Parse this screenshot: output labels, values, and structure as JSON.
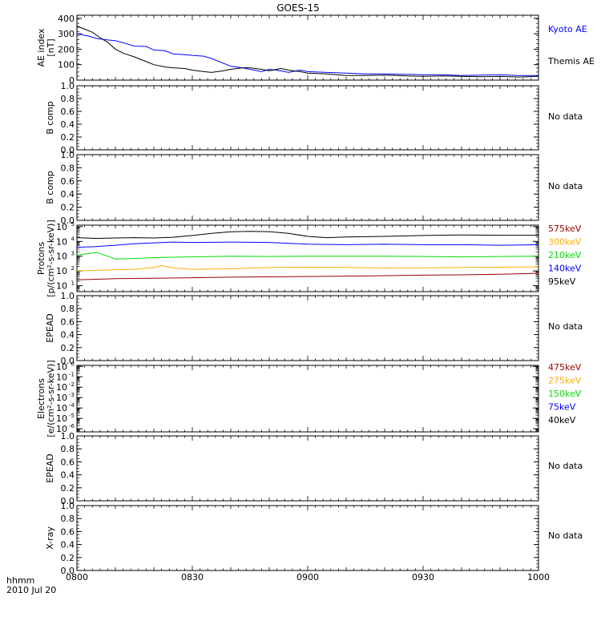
{
  "title": "GOES-15",
  "x_axis": {
    "ticks": [
      "0800",
      "0830",
      "0900",
      "0930",
      "1000"
    ],
    "corner_label": "hhmm",
    "date": "2010 Jul 20"
  },
  "colors": {
    "black": "#000000",
    "blue": "#0000ff",
    "green": "#00dd00",
    "orange": "#ffaa00",
    "darkred": "#990000"
  },
  "chart_data": [
    {
      "type": "line",
      "panel": "ae",
      "ylabel": [
        "AE index",
        "[nT]"
      ],
      "yticks": [
        "0",
        "100",
        "200",
        "300",
        "400"
      ],
      "ylim": [
        0,
        420
      ],
      "x_range_minutes": [
        "08:00",
        "10:00"
      ],
      "series": [
        {
          "name": "Kyoto AE",
          "color": "#0000ff",
          "x": [
            "08:00",
            "08:03",
            "08:05",
            "08:08",
            "08:10",
            "08:13",
            "08:15",
            "08:18",
            "08:20",
            "08:23",
            "08:25",
            "08:28",
            "08:30",
            "08:33",
            "08:35",
            "08:38",
            "08:40",
            "08:43",
            "08:45",
            "08:48",
            "08:50",
            "08:53",
            "08:55",
            "08:58",
            "09:00",
            "09:05",
            "09:10",
            "09:15",
            "09:20",
            "09:25",
            "09:30",
            "09:35",
            "09:40",
            "09:45",
            "09:50",
            "09:55",
            "10:00"
          ],
          "values": [
            300,
            285,
            270,
            260,
            255,
            235,
            220,
            218,
            195,
            190,
            170,
            165,
            160,
            155,
            140,
            110,
            90,
            80,
            70,
            55,
            70,
            60,
            50,
            65,
            55,
            50,
            45,
            40,
            40,
            38,
            35,
            35,
            30,
            32,
            35,
            30,
            30
          ]
        },
        {
          "name": "Themis AE",
          "color": "#000000",
          "x": [
            "08:00",
            "08:02",
            "08:04",
            "08:06",
            "08:08",
            "08:10",
            "08:12",
            "08:15",
            "08:18",
            "08:20",
            "08:23",
            "08:25",
            "08:28",
            "08:30",
            "08:33",
            "08:35",
            "08:38",
            "08:40",
            "08:43",
            "08:45",
            "08:48",
            "08:50",
            "08:53",
            "08:55",
            "08:58",
            "09:00",
            "09:05",
            "09:10",
            "09:15",
            "09:20",
            "09:25",
            "09:30",
            "09:35",
            "09:40",
            "09:45",
            "09:50",
            "09:55",
            "10:00"
          ],
          "values": [
            350,
            330,
            310,
            275,
            245,
            200,
            175,
            150,
            120,
            100,
            85,
            80,
            75,
            65,
            55,
            50,
            60,
            70,
            80,
            80,
            70,
            60,
            75,
            65,
            55,
            45,
            40,
            30,
            30,
            32,
            28,
            25,
            27,
            25,
            22,
            24,
            20,
            25
          ]
        }
      ]
    },
    {
      "type": "line",
      "panel": "b1",
      "ylabel": [
        "B comp"
      ],
      "yticks": [
        "0.0",
        "0.2",
        "0.4",
        "0.6",
        "0.8",
        "1.0"
      ],
      "ylim": [
        0,
        1
      ],
      "series": [],
      "status": "No data"
    },
    {
      "type": "line",
      "panel": "b2",
      "ylabel": [
        "B comp"
      ],
      "yticks": [
        "0.0",
        "0.2",
        "0.4",
        "0.6",
        "0.8",
        "1.0"
      ],
      "ylim": [
        0,
        1
      ],
      "series": [],
      "status": "No data"
    },
    {
      "type": "line",
      "panel": "protons",
      "scale": "log",
      "ylabel": [
        "Protons",
        "[p/(cm²-s-sr-keV)]"
      ],
      "ylim_exp": [
        0.6,
        5.1
      ],
      "ytick_exps": [
        1,
        2,
        3,
        4,
        5
      ],
      "series": [
        {
          "name": "575keV",
          "color": "#990000",
          "x": [
            "08:00",
            "08:10",
            "08:20",
            "08:30",
            "08:40",
            "08:50",
            "09:00",
            "09:10",
            "09:20",
            "09:30",
            "09:40",
            "09:50",
            "10:00"
          ],
          "values": [
            25,
            30,
            32,
            35,
            38,
            40,
            42,
            45,
            48,
            52,
            55,
            60,
            70
          ]
        },
        {
          "name": "300keV",
          "color": "#ffaa00",
          "x": [
            "08:00",
            "08:05",
            "08:10",
            "08:15",
            "08:20",
            "08:22",
            "08:25",
            "08:30",
            "08:40",
            "08:50",
            "09:00",
            "09:10",
            "09:20",
            "09:30",
            "09:40",
            "09:50",
            "10:00"
          ],
          "values": [
            100,
            110,
            120,
            130,
            170,
            230,
            160,
            130,
            140,
            170,
            180,
            170,
            160,
            165,
            170,
            180,
            190
          ]
        },
        {
          "name": "210keV",
          "color": "#00dd00",
          "x": [
            "08:00",
            "08:03",
            "08:05",
            "08:08",
            "08:10",
            "08:15",
            "08:20",
            "08:25",
            "08:30",
            "08:40",
            "08:50",
            "09:00",
            "09:10",
            "09:20",
            "09:30",
            "09:40",
            "09:50",
            "10:00"
          ],
          "values": [
            1200,
            1500,
            1800,
            1000,
            650,
            700,
            800,
            850,
            900,
            1000,
            950,
            1000,
            1000,
            1000,
            950,
            900,
            950,
            1000
          ]
        },
        {
          "name": "140keV",
          "color": "#0000ff",
          "x": [
            "08:00",
            "08:05",
            "08:10",
            "08:15",
            "08:20",
            "08:25",
            "08:30",
            "08:40",
            "08:50",
            "09:00",
            "09:10",
            "09:20",
            "09:30",
            "09:40",
            "09:50",
            "10:00"
          ],
          "values": [
            4000,
            4500,
            5500,
            7000,
            8000,
            9000,
            8500,
            9000,
            8500,
            6500,
            6000,
            6500,
            6000,
            6000,
            5500,
            6000
          ]
        },
        {
          "name": "95keV",
          "color": "#000000",
          "x": [
            "08:00",
            "08:05",
            "08:10",
            "08:15",
            "08:20",
            "08:25",
            "08:30",
            "08:35",
            "08:40",
            "08:45",
            "08:50",
            "08:55",
            "09:00",
            "09:05",
            "09:10",
            "09:20",
            "09:30",
            "09:40",
            "09:50",
            "10:00"
          ],
          "values": [
            18000,
            16000,
            17000,
            18000,
            17000,
            19000,
            25000,
            35000,
            45000,
            48000,
            46000,
            35000,
            22000,
            18000,
            20000,
            22000,
            25000,
            27000,
            26000,
            26000
          ]
        }
      ]
    },
    {
      "type": "line",
      "panel": "epead1",
      "ylabel": [
        "EPEAD"
      ],
      "yticks": [
        "0.0",
        "0.2",
        "0.4",
        "0.6",
        "0.8",
        "1.0"
      ],
      "ylim": [
        0,
        1
      ],
      "series": [],
      "status": "No data"
    },
    {
      "type": "line",
      "panel": "electrons",
      "scale": "log",
      "ylabel": [
        "Electrons",
        "[e/(cm²-s-sr-keV)]"
      ],
      "ylim_exp": [
        -6.3,
        0.1
      ],
      "ytick_exps": [
        0,
        -1,
        -2,
        -3,
        -4,
        -5,
        -6
      ],
      "series": [
        {
          "name": "475keV",
          "color": "#990000",
          "values": []
        },
        {
          "name": "275keV",
          "color": "#ffaa00",
          "values": []
        },
        {
          "name": "150keV",
          "color": "#00dd00",
          "values": []
        },
        {
          "name": "75keV",
          "color": "#0000ff",
          "values": []
        },
        {
          "name": "40keV",
          "color": "#000000",
          "values": []
        }
      ]
    },
    {
      "type": "line",
      "panel": "epead2",
      "ylabel": [
        "EPEAD"
      ],
      "yticks": [
        "0.0",
        "0.2",
        "0.4",
        "0.6",
        "0.8",
        "1.0"
      ],
      "ylim": [
        0,
        1
      ],
      "series": [],
      "status": "No data"
    },
    {
      "type": "line",
      "panel": "xray",
      "ylabel": [
        "X-ray"
      ],
      "yticks": [
        "0.0",
        "0.2",
        "0.4",
        "0.6",
        "0.8",
        "1.0"
      ],
      "ylim": [
        0,
        1
      ],
      "series": [],
      "status": "No data"
    }
  ]
}
